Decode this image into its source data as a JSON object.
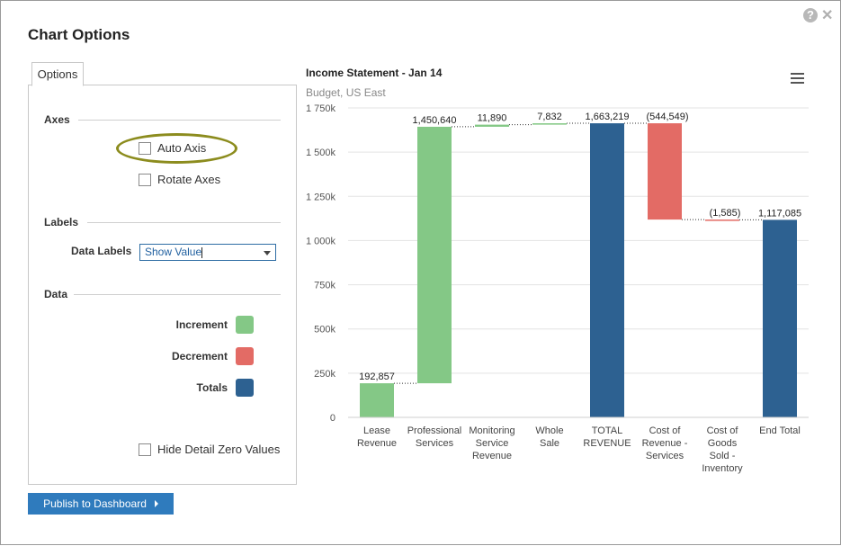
{
  "dialog": {
    "title": "Chart Options",
    "help_glyph": "?",
    "close_glyph": "✕"
  },
  "options": {
    "tab_label": "Options",
    "axes": {
      "heading": "Axes",
      "auto_axis": {
        "label": "Auto Axis",
        "checked": false
      },
      "rotate_axes": {
        "label": "Rotate Axes",
        "checked": false
      }
    },
    "labels": {
      "heading": "Labels",
      "data_labels_label": "Data Labels",
      "data_labels_value": "Show Value"
    },
    "data": {
      "heading": "Data",
      "legend": [
        {
          "label": "Increment",
          "color": "#84c886"
        },
        {
          "label": "Decrement",
          "color": "#e36b65"
        },
        {
          "label": "Totals",
          "color": "#2d6191"
        }
      ]
    },
    "hide_zero": {
      "label": "Hide Detail Zero Values",
      "checked": false
    }
  },
  "publish_button": {
    "label": "Publish to Dashboard"
  },
  "chart": {
    "title": "Income Statement - Jan 14",
    "subtitle": "Budget, US East"
  },
  "chart_data": {
    "type": "bar",
    "subtype": "waterfall",
    "title": "Income Statement - Jan 14",
    "subtitle": "Budget, US East",
    "ylim": [
      0,
      1750000
    ],
    "y_ticks": [
      0,
      250000,
      500000,
      750000,
      1000000,
      1250000,
      1500000,
      1750000
    ],
    "y_tick_labels": [
      "0",
      "250k",
      "500k",
      "750k",
      "1 000k",
      "1 250k",
      "1 500k",
      "1 750k"
    ],
    "grid": true,
    "categories": [
      [
        "Lease",
        "Revenue"
      ],
      [
        "Professional",
        "Services"
      ],
      [
        "Monitoring",
        "Service",
        "Revenue"
      ],
      [
        "Whole",
        "Sale"
      ],
      [
        "TOTAL",
        "REVENUE"
      ],
      [
        "Cost of",
        "Revenue -",
        "Services"
      ],
      [
        "Cost of",
        "Goods",
        "Sold -",
        "Inventory"
      ],
      [
        "End Total"
      ]
    ],
    "values": [
      192857,
      1450640,
      11890,
      7832,
      1663219,
      -544549,
      -1585,
      1117085
    ],
    "kinds": [
      "increment",
      "increment",
      "increment",
      "increment",
      "total",
      "decrement",
      "decrement",
      "total"
    ],
    "data_labels": [
      "192,857",
      "1,450,640",
      "11,890",
      "7,832",
      "1,663,219",
      "(544,549)",
      "(1,585)",
      "1,117,085"
    ],
    "colors": {
      "increment": "#84c886",
      "decrement": "#e36b65",
      "total": "#2d6191"
    }
  }
}
